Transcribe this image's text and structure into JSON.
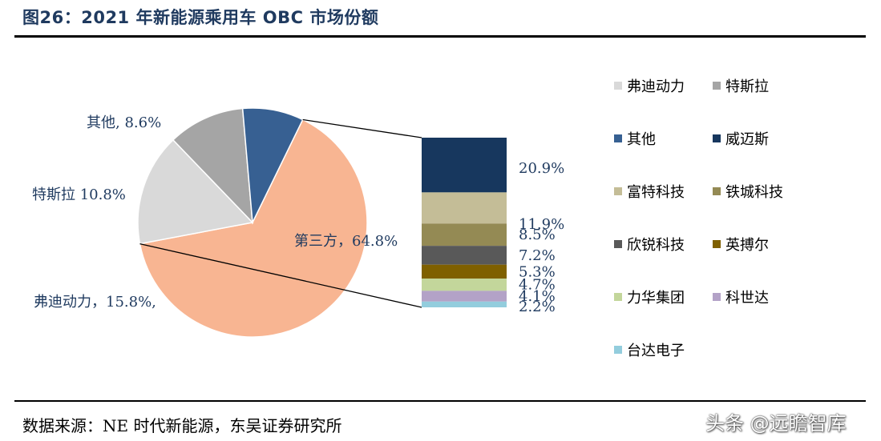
{
  "figure": {
    "title": "图26：2021 年新能源乘用车 OBC 市场份额",
    "source": "数据来源：NE 时代新能源，东吴证券研究所",
    "watermark": "头条 @远瞻智库"
  },
  "chart_data": {
    "type": "pie",
    "title": "",
    "pie": {
      "slices": [
        {
          "name": "第三方",
          "value": 64.8,
          "label": "第三方，64.8%",
          "color": "#f8b592"
        },
        {
          "name": "弗迪动力",
          "value": 15.8,
          "label": "弗迪动力，15.8%,",
          "color": "#d9d9d9"
        },
        {
          "name": "特斯拉",
          "value": 10.8,
          "label": "特斯拉 10.8%",
          "color": "#a5a5a5"
        },
        {
          "name": "其他",
          "value": 8.6,
          "label": "其他, 8.6%",
          "color": "#376092"
        }
      ]
    },
    "breakdown": {
      "of": "第三方",
      "segments": [
        {
          "name": "威迈斯",
          "value": 20.9,
          "label": "20.9%",
          "color": "#17375e"
        },
        {
          "name": "富特科技",
          "value": 11.9,
          "label": "11.9%",
          "color": "#c4bd97"
        },
        {
          "name": "铁城科技",
          "value": 8.5,
          "label": "8.5%",
          "color": "#948a54"
        },
        {
          "name": "欣锐科技",
          "value": 7.2,
          "label": "7.2%",
          "color": "#595959"
        },
        {
          "name": "英搏尔",
          "value": 5.3,
          "label": "5.3%",
          "color": "#7f6000"
        },
        {
          "name": "力华集团",
          "value": 4.7,
          "label": "4.7%",
          "color": "#c3d69b"
        },
        {
          "name": "科世达",
          "value": 4.1,
          "label": "4.1%",
          "color": "#b3a2c7"
        },
        {
          "name": "台达电子",
          "value": 2.2,
          "label": "2.2%",
          "color": "#93cddd"
        }
      ]
    },
    "legend": {
      "placement": "right",
      "items": [
        {
          "name": "弗迪动力",
          "color": "#d9d9d9"
        },
        {
          "name": "特斯拉",
          "color": "#a5a5a5"
        },
        {
          "name": "其他",
          "color": "#376092"
        },
        {
          "name": "威迈斯",
          "color": "#17375e"
        },
        {
          "name": "富特科技",
          "color": "#c4bd97"
        },
        {
          "name": "铁城科技",
          "color": "#948a54"
        },
        {
          "name": "欣锐科技",
          "color": "#595959"
        },
        {
          "name": "英搏尔",
          "color": "#7f6000"
        },
        {
          "name": "力华集团",
          "color": "#c3d69b"
        },
        {
          "name": "科世达",
          "color": "#b3a2c7"
        },
        {
          "name": "台达电子",
          "color": "#93cddd"
        }
      ]
    }
  }
}
